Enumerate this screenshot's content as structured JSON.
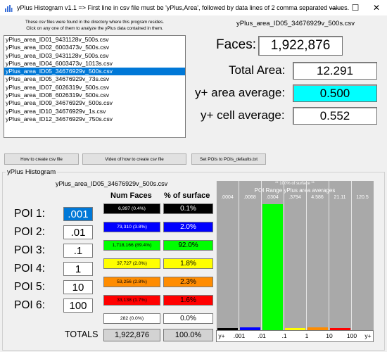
{
  "window": {
    "title": "yPlus Histogram v1.1 => First line in csv file must be 'yPlus,Area', followed by data lines of 2 comma separated values.",
    "controls": {
      "minimize": "—",
      "maximize": "☐",
      "close": "✕"
    }
  },
  "intro": {
    "line1": "These csv files were found in the directory where this program resides.",
    "line2": "Click on any one of them to analyze the yPlus data contained in them."
  },
  "files": {
    "items": [
      "yPlus_area_ID01_9431128v_500s.csv",
      "yPlus_area_ID02_6003473v_500s.csv",
      "yPlus_area_ID03_9431128v_500s.csv",
      "yPlus_area_ID04_6003473v_1013s.csv",
      "yPlus_area_ID05_34676929v_500s.csv",
      "yPlus_area_ID05_34676929v_73s.csv",
      "yPlus_area_ID07_6026319v_500s.csv",
      "yPlus_area_ID08_6026319v_500s.csv",
      "yPlus_area_ID09_34676929v_500s.csv",
      "yPlus_area_ID10_34676929v_1s.csv",
      "yPlus_area_ID12_34676929v_750s.csv"
    ],
    "selected_index": 4
  },
  "summary": {
    "selected_file": "yPlus_area_ID05_34676929v_500s.csv",
    "faces_label": "Faces:",
    "faces_value": "1,922,876",
    "area_label": "Total Area:",
    "area_value": "12.291",
    "yplus_area_label": "y+ area average:",
    "yplus_area_value": "0.500",
    "yplus_area_color": "#00ffff",
    "yplus_cell_label": "y+ cell average:",
    "yplus_cell_value": "0.552"
  },
  "buttons": {
    "how_csv": "How to create csv file",
    "video_csv": "Video of how to create csv file",
    "set_pois": "Set POIs to POIs_defaults.txt"
  },
  "histogram": {
    "group_label": "yPlus Histogram",
    "file": "yPlus_area_ID05_34676929v_500s.csv",
    "col_faces": "Num Faces",
    "col_surface": "% of surface",
    "pois": [
      {
        "label": "POI 1:",
        "value": ".001"
      },
      {
        "label": "POI 2:",
        "value": ".01"
      },
      {
        "label": "POI 3:",
        "value": ".1"
      },
      {
        "label": "POI 4:",
        "value": "1"
      },
      {
        "label": "POI 5:",
        "value": "10"
      },
      {
        "label": "POI 6:",
        "value": "100"
      }
    ],
    "rows": [
      {
        "faces": "6,997 (0.4%)",
        "pct": "0.1%",
        "bg": "#000000",
        "fg": "#ffffff"
      },
      {
        "faces": "73,310 (3.8%)",
        "pct": "2.0%",
        "bg": "#0000ff",
        "fg": "#ffffff"
      },
      {
        "faces": "1,718,166 (89.4%)",
        "pct": "92.0%",
        "bg": "#00ff00",
        "fg": "#000000"
      },
      {
        "faces": "37,727 (2.0%)",
        "pct": "1.8%",
        "bg": "#ffff00",
        "fg": "#000000"
      },
      {
        "faces": "53,256 (2.8%)",
        "pct": "2.3%",
        "bg": "#ff8c00",
        "fg": "#000000"
      },
      {
        "faces": "33,138 (1.7%)",
        "pct": "1.6%",
        "bg": "#ff0000",
        "fg": "#000000"
      },
      {
        "faces": "282 (0.0%)",
        "pct": "0.0%",
        "bg": "#ffffff",
        "fg": "#000000"
      }
    ],
    "totals_label": "TOTALS",
    "totals_faces": "1,922,876",
    "totals_pct": "100.0%"
  },
  "chart_data": {
    "type": "bar",
    "title": "** 100% of surface **",
    "subtitle": "POI Range yPlus area averages",
    "range_averages": [
      ".0004",
      ".0068",
      ".0304",
      ".3794",
      "4.586",
      "21.11",
      "120.5"
    ],
    "x_tick_labels": [
      "y+",
      ".001",
      ".01",
      ".1",
      "1",
      "10",
      "100",
      "y+"
    ],
    "values": [
      0.1,
      2.0,
      92.0,
      1.8,
      2.3,
      1.6,
      0.0
    ],
    "colors": [
      "#000000",
      "#0000ff",
      "#00ff00",
      "#ffff00",
      "#ff8c00",
      "#ff0000",
      "#ffffff"
    ],
    "ylim": [
      0,
      100
    ],
    "plot_bg": "#a9a9a9"
  }
}
